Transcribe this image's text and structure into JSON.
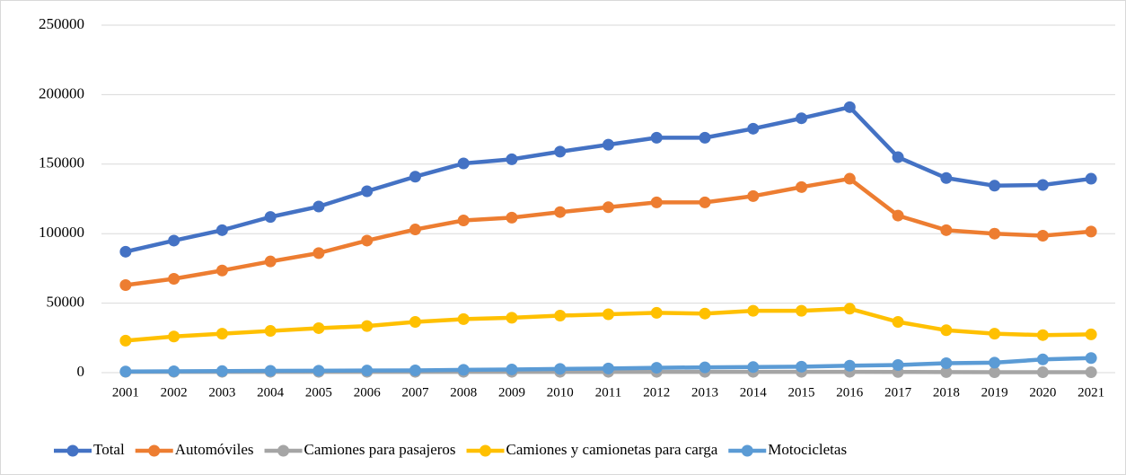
{
  "chart_data": {
    "type": "line",
    "categories": [
      "2001",
      "2002",
      "2003",
      "2004",
      "2005",
      "2006",
      "2007",
      "2008",
      "2009",
      "2010",
      "2011",
      "2012",
      "2013",
      "2014",
      "2015",
      "2016",
      "2017",
      "2018",
      "2019",
      "2020",
      "2021"
    ],
    "series": [
      {
        "name": "Total",
        "color": "#4472c4",
        "values": [
          87000,
          95000,
          102500,
          112000,
          119500,
          130500,
          141000,
          150500,
          153500,
          159000,
          164000,
          169000,
          169000,
          175500,
          183000,
          191000,
          155000,
          140000,
          134500,
          135000,
          139500
        ]
      },
      {
        "name": "Automóviles",
        "color": "#ed7d31",
        "values": [
          63000,
          67500,
          73500,
          80000,
          86000,
          95000,
          103000,
          109500,
          111500,
          115500,
          119000,
          122500,
          122500,
          127000,
          133500,
          139500,
          113000,
          102500,
          100000,
          98500,
          101500
        ]
      },
      {
        "name": "Camiones para pasajeros",
        "color": "#a5a5a5",
        "values": [
          600,
          600,
          600,
          600,
          600,
          600,
          600,
          600,
          600,
          600,
          600,
          600,
          600,
          600,
          600,
          600,
          500,
          400,
          300,
          300,
          300
        ]
      },
      {
        "name": "Camiones y camionetas para carga",
        "color": "#ffc000",
        "values": [
          23000,
          26000,
          28000,
          30000,
          32000,
          33500,
          36500,
          38500,
          39500,
          41000,
          42000,
          43000,
          42500,
          44500,
          44500,
          46000,
          36500,
          30500,
          28000,
          27000,
          27500
        ]
      },
      {
        "name": "Motocicletas",
        "color": "#5b9bd5",
        "values": [
          800,
          1000,
          1100,
          1300,
          1400,
          1500,
          1600,
          2000,
          2300,
          2700,
          3000,
          3500,
          3800,
          4000,
          4300,
          5000,
          5500,
          6800,
          7200,
          9500,
          10500
        ]
      }
    ],
    "ylim": [
      0,
      250000
    ],
    "yticks": [
      0,
      50000,
      100000,
      150000,
      200000,
      250000
    ],
    "grid": true,
    "legend": "bottom"
  }
}
